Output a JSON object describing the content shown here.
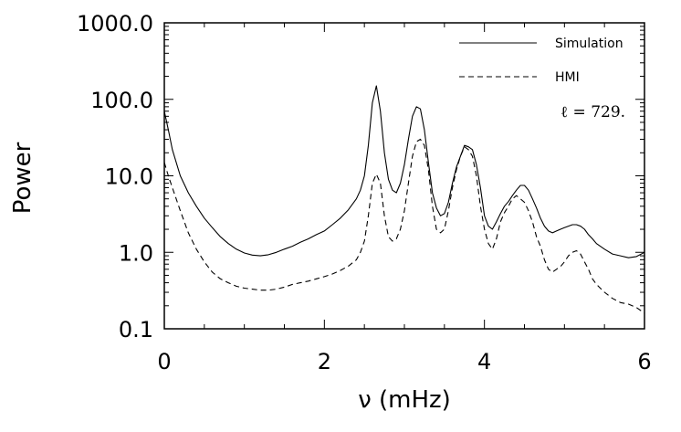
{
  "chart_data": {
    "type": "line",
    "title": "",
    "xlabel": "ν (mHz)",
    "ylabel": "Power",
    "xlim": [
      0,
      6
    ],
    "ylim": [
      0.1,
      1000
    ],
    "yscale": "log",
    "xticks": [
      0,
      2,
      4,
      6
    ],
    "xtick_labels": [
      "0",
      "2",
      "4",
      "6"
    ],
    "yticks": [
      0.1,
      1,
      10,
      100,
      1000
    ],
    "ytick_labels": [
      "0.1",
      "1.0",
      "10.0",
      "100.0",
      "1000.0"
    ],
    "grid": false,
    "legend_position": "top-right",
    "annotation": "ℓ = 729.",
    "series": [
      {
        "name": "Simulation",
        "style": "solid",
        "color": "#000000",
        "x": [
          0.0,
          0.05,
          0.1,
          0.2,
          0.3,
          0.4,
          0.5,
          0.6,
          0.7,
          0.8,
          0.9,
          1.0,
          1.1,
          1.2,
          1.3,
          1.4,
          1.5,
          1.6,
          1.7,
          1.8,
          1.9,
          2.0,
          2.1,
          2.2,
          2.3,
          2.4,
          2.45,
          2.5,
          2.55,
          2.6,
          2.65,
          2.7,
          2.75,
          2.8,
          2.85,
          2.9,
          2.95,
          3.0,
          3.05,
          3.1,
          3.15,
          3.2,
          3.25,
          3.3,
          3.35,
          3.4,
          3.45,
          3.5,
          3.55,
          3.6,
          3.65,
          3.7,
          3.75,
          3.8,
          3.85,
          3.9,
          3.95,
          4.0,
          4.05,
          4.1,
          4.15,
          4.2,
          4.25,
          4.3,
          4.35,
          4.4,
          4.45,
          4.5,
          4.55,
          4.6,
          4.65,
          4.7,
          4.75,
          4.8,
          4.85,
          4.9,
          4.95,
          5.0,
          5.05,
          5.1,
          5.15,
          5.2,
          5.25,
          5.3,
          5.35,
          5.4,
          5.5,
          5.6,
          5.7,
          5.8,
          5.9,
          6.0
        ],
        "y": [
          70,
          40,
          22,
          10,
          6.0,
          4.0,
          2.8,
          2.1,
          1.6,
          1.3,
          1.1,
          0.98,
          0.92,
          0.9,
          0.93,
          1.0,
          1.1,
          1.2,
          1.35,
          1.5,
          1.7,
          1.9,
          2.3,
          2.8,
          3.6,
          5.0,
          6.5,
          10,
          25,
          90,
          150,
          70,
          20,
          9.0,
          6.5,
          6.0,
          8.0,
          14,
          30,
          60,
          80,
          75,
          40,
          15,
          6.0,
          3.8,
          3.0,
          3.2,
          4.5,
          8.0,
          13,
          18,
          25,
          24,
          22,
          14,
          7.0,
          3.0,
          2.2,
          2.0,
          2.5,
          3.2,
          4.0,
          4.6,
          5.5,
          6.5,
          7.5,
          7.5,
          6.5,
          5.0,
          3.8,
          2.8,
          2.2,
          1.9,
          1.8,
          1.9,
          2.0,
          2.1,
          2.2,
          2.3,
          2.3,
          2.2,
          2.0,
          1.7,
          1.5,
          1.3,
          1.1,
          0.95,
          0.9,
          0.85,
          0.88,
          1.0
        ]
      },
      {
        "name": "HMI",
        "style": "dashed",
        "color": "#000000",
        "x": [
          0.0,
          0.05,
          0.1,
          0.2,
          0.3,
          0.4,
          0.5,
          0.6,
          0.7,
          0.8,
          0.9,
          1.0,
          1.1,
          1.2,
          1.3,
          1.4,
          1.5,
          1.6,
          1.7,
          1.8,
          1.9,
          2.0,
          2.1,
          2.2,
          2.3,
          2.4,
          2.45,
          2.5,
          2.55,
          2.6,
          2.65,
          2.7,
          2.75,
          2.8,
          2.85,
          2.9,
          2.95,
          3.0,
          3.05,
          3.1,
          3.15,
          3.2,
          3.25,
          3.3,
          3.35,
          3.4,
          3.45,
          3.5,
          3.55,
          3.6,
          3.65,
          3.7,
          3.75,
          3.8,
          3.85,
          3.9,
          3.95,
          4.0,
          4.05,
          4.1,
          4.15,
          4.2,
          4.25,
          4.3,
          4.35,
          4.4,
          4.45,
          4.5,
          4.55,
          4.6,
          4.65,
          4.7,
          4.75,
          4.8,
          4.85,
          4.9,
          4.95,
          5.0,
          5.05,
          5.1,
          5.15,
          5.2,
          5.25,
          5.3,
          5.35,
          5.4,
          5.5,
          5.6,
          5.7,
          5.8,
          5.9,
          6.0
        ],
        "y": [
          15,
          10,
          7.0,
          3.5,
          1.8,
          1.1,
          0.75,
          0.55,
          0.45,
          0.4,
          0.36,
          0.34,
          0.33,
          0.32,
          0.32,
          0.33,
          0.35,
          0.38,
          0.4,
          0.42,
          0.45,
          0.48,
          0.52,
          0.58,
          0.66,
          0.8,
          1.0,
          1.4,
          3.0,
          8.0,
          10.5,
          8.0,
          3.0,
          1.6,
          1.4,
          1.5,
          2.0,
          3.5,
          8.0,
          18,
          28,
          30,
          25,
          12,
          4.0,
          2.0,
          1.8,
          2.0,
          3.5,
          7.0,
          12,
          18,
          24,
          22,
          18,
          10,
          4.0,
          2.0,
          1.3,
          1.1,
          1.5,
          2.5,
          3.3,
          4.0,
          5.0,
          5.5,
          5.0,
          4.5,
          3.5,
          2.5,
          1.6,
          1.2,
          0.8,
          0.6,
          0.55,
          0.6,
          0.65,
          0.75,
          0.9,
          1.0,
          1.05,
          0.95,
          0.75,
          0.6,
          0.45,
          0.38,
          0.3,
          0.25,
          0.22,
          0.21,
          0.19,
          0.16
        ]
      }
    ]
  }
}
